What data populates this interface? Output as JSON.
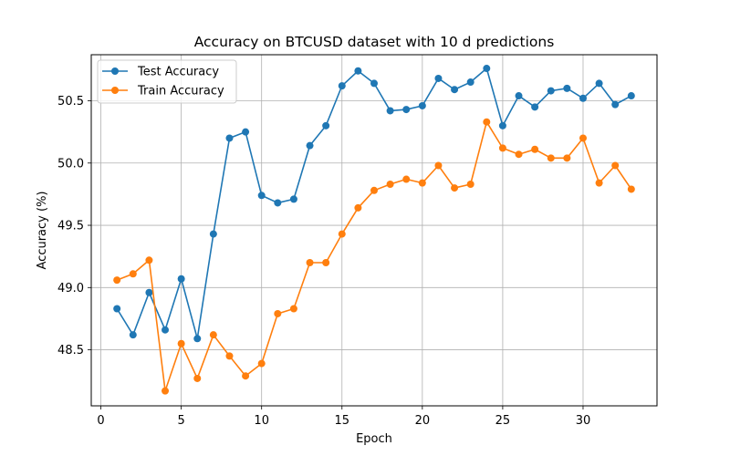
{
  "chart_data": {
    "type": "line",
    "title": "Accuracy on BTCUSD dataset with 10 d predictions",
    "xlabel": "Epoch",
    "ylabel": "Accuracy (%)",
    "x": [
      1,
      2,
      3,
      4,
      5,
      6,
      7,
      8,
      9,
      10,
      11,
      12,
      13,
      14,
      15,
      16,
      17,
      18,
      19,
      20,
      21,
      22,
      23,
      24,
      25,
      26,
      27,
      28,
      29,
      30,
      31,
      32,
      33
    ],
    "xlim": [
      -0.6,
      34.6
    ],
    "ylim": [
      48.05,
      50.87
    ],
    "xticks": [
      0,
      5,
      10,
      15,
      20,
      25,
      30
    ],
    "yticks": [
      48.5,
      49.0,
      49.5,
      50.0,
      50.5
    ],
    "ytick_labels": [
      "48.5",
      "49.0",
      "49.5",
      "50.0",
      "50.5"
    ],
    "grid": true,
    "legend_position": "top-left",
    "series": [
      {
        "name": "Test Accuracy",
        "color": "#1f77b4",
        "values": [
          48.83,
          48.62,
          48.96,
          48.66,
          49.07,
          48.59,
          49.43,
          50.2,
          50.25,
          49.74,
          49.68,
          49.71,
          50.14,
          50.3,
          50.62,
          50.74,
          50.64,
          50.42,
          50.43,
          50.46,
          50.68,
          50.59,
          50.65,
          50.76,
          50.3,
          50.54,
          50.45,
          50.58,
          50.6,
          50.52,
          50.64,
          50.47,
          50.54
        ]
      },
      {
        "name": "Train Accuracy",
        "color": "#ff7f0e",
        "values": [
          49.06,
          49.11,
          49.22,
          48.17,
          48.55,
          48.27,
          48.62,
          48.45,
          48.29,
          48.39,
          48.79,
          48.83,
          49.2,
          49.2,
          49.43,
          49.64,
          49.78,
          49.83,
          49.87,
          49.84,
          49.98,
          49.8,
          49.83,
          50.33,
          50.12,
          50.07,
          50.11,
          50.04,
          50.04,
          50.2,
          49.84,
          49.98,
          49.79
        ]
      }
    ]
  }
}
